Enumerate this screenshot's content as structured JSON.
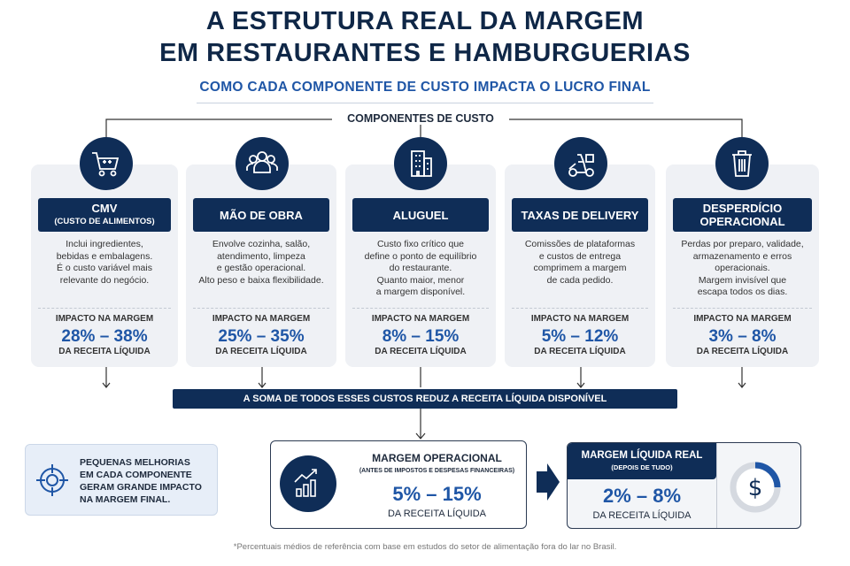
{
  "title_line1": "A ESTRUTURA REAL DA MARGEM",
  "title_line2": "EM RESTAURANTES E HAMBURGUERIAS",
  "subtitle": "COMO CADA COMPONENTE DE CUSTO IMPACTA O LUCRO FINAL",
  "components_label": "COMPONENTES DE CUSTO",
  "impact_label": "IMPACTO NA MARGEM",
  "revenue_label": "DA RECEITA LÍQUIDA",
  "cards": [
    {
      "icon": "shopping-cart-icon",
      "title": "CMV",
      "subtitle": "(CUSTO DE ALIMENTOS)",
      "desc": [
        "Inclui ingredientes,",
        "bebidas e embalagens.",
        "É o custo variável mais",
        "relevante do negócio."
      ],
      "range": "28% – 38%"
    },
    {
      "icon": "people-icon",
      "title": "MÃO DE OBRA",
      "subtitle": "",
      "desc": [
        "Envolve cozinha, salão,",
        "atendimento, limpeza",
        "e gestão operacional.",
        "Alto peso e baixa flexibilidade."
      ],
      "range": "25% – 35%"
    },
    {
      "icon": "building-icon",
      "title": "ALUGUEL",
      "subtitle": "",
      "desc": [
        "Custo fixo crítico que",
        "define o ponto de equilíbrio",
        "do restaurante.",
        "Quanto maior, menor",
        "a margem disponível."
      ],
      "range": "8% – 15%"
    },
    {
      "icon": "delivery-scooter-icon",
      "title": "TAXAS DE DELIVERY",
      "subtitle": "",
      "desc": [
        "Comissões de plataformas",
        "e custos de entrega",
        "comprimem a margem",
        "de cada pedido."
      ],
      "range": "5% – 12%"
    },
    {
      "icon": "trash-icon",
      "title": "DESPERDÍCIO",
      "subtitle": "OPERACIONAL",
      "desc": [
        "Perdas por preparo, validade,",
        "armazenamento e erros",
        "operacionais.",
        "Margem invisível que",
        "escapa todos os dias."
      ],
      "range": "3% – 8%"
    }
  ],
  "sum_banner": "A SOMA DE TODOS ESSES CUSTOS REDUZ A RECEITA LÍQUIDA DISPONÍVEL",
  "tip": [
    "PEQUENAS MELHORIAS",
    "EM CADA COMPONENTE",
    "GERAM GRANDE IMPACTO",
    "NA MARGEM FINAL."
  ],
  "operational": {
    "title": "MARGEM OPERACIONAL",
    "note": "(ANTES DE IMPOSTOS E DESPESAS FINANCEIRAS)",
    "range": "5% – 15%",
    "label": "DA RECEITA LÍQUIDA"
  },
  "net": {
    "title": "MARGEM LÍQUIDA REAL",
    "note": "(DEPOIS DE TUDO)",
    "range": "2% – 8%",
    "label": "DA RECEITA LÍQUIDA"
  },
  "footnote": "*Percentuais médios de referência com base em estudos do setor de alimentação fora do lar no Brasil.",
  "colors": {
    "navy": "#0f2d57",
    "blue": "#1f56a6",
    "card": "#eff1f5"
  }
}
